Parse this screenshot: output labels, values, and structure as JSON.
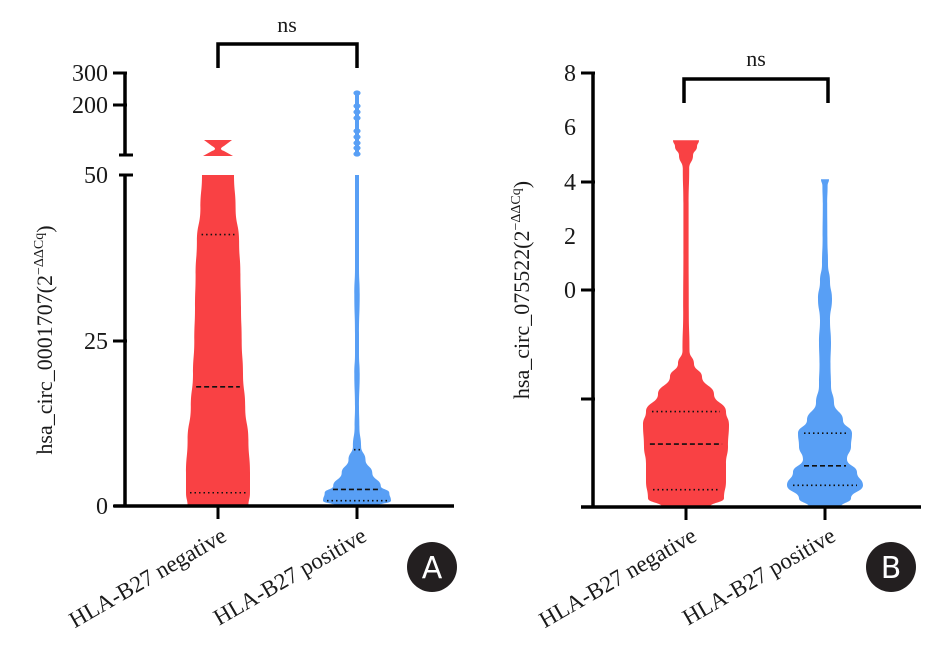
{
  "colors": {
    "negative": "#F94144",
    "positive": "#589FF5",
    "axis": "#000000",
    "badge": "#231F20"
  },
  "chart_data": [
    {
      "type": "violin",
      "panel_label": "A",
      "ylabel": "hsa_circ_0001707",
      "ylabel_unit": "(2",
      "ylabel_exponent": "−ΔΔCq",
      "ylabel_close": ")",
      "y_axis_broken": true,
      "y_segments": [
        {
          "range": [
            0,
            50
          ],
          "ticks": [
            0,
            25,
            50
          ],
          "tick_labels": [
            "0",
            "25",
            "50"
          ]
        },
        {
          "range": [
            75,
            300
          ],
          "ticks": [
            200,
            300
          ],
          "tick_labels": [
            "200",
            "300"
          ]
        }
      ],
      "categories": [
        "HLA-B27 negative",
        "HLA-B27 positive"
      ],
      "series": [
        {
          "name": "HLA-B27 negative",
          "color_key": "negative",
          "min": 0,
          "max": 100,
          "q1": 2,
          "median": 18,
          "q3": 41,
          "density_profile": [
            [
              0,
              0.95
            ],
            [
              2,
              1.0
            ],
            [
              5,
              1.0
            ],
            [
              10,
              0.95
            ],
            [
              15,
              0.85
            ],
            [
              20,
              0.78
            ],
            [
              25,
              0.74
            ],
            [
              30,
              0.72
            ],
            [
              35,
              0.7
            ],
            [
              40,
              0.66
            ],
            [
              45,
              0.55
            ],
            [
              50,
              0.5
            ]
          ],
          "outlier_segment": {
            "range": [
              75,
              100
            ]
          }
        },
        {
          "name": "HLA-B27 positive",
          "color_key": "positive",
          "min": 0,
          "max": 240,
          "q1": 0.8,
          "median": 2.5,
          "q3": 8.5,
          "density_profile": [
            [
              0,
              0.6
            ],
            [
              0.8,
              1.0
            ],
            [
              2,
              0.95
            ],
            [
              3,
              0.7
            ],
            [
              5,
              0.45
            ],
            [
              7,
              0.25
            ],
            [
              9,
              0.12
            ],
            [
              12,
              0.07
            ],
            [
              15,
              0.06
            ],
            [
              20,
              0.08
            ],
            [
              23,
              0.05
            ],
            [
              26,
              0.05
            ],
            [
              32,
              0.08
            ],
            [
              36,
              0.04
            ],
            [
              40,
              0.06
            ],
            [
              44,
              0.04
            ],
            [
              50,
              0.04
            ]
          ],
          "outlier_segment": {
            "range": [
              75,
              240
            ]
          }
        }
      ],
      "significance": {
        "label": "ns",
        "between": [
          "HLA-B27 negative",
          "HLA-B27 positive"
        ]
      }
    },
    {
      "type": "violin",
      "panel_label": "B",
      "ylabel": "hsa_circ_075522",
      "ylabel_unit": "(2",
      "ylabel_exponent": "−ΔΔCq",
      "ylabel_close": ")",
      "y_tick_labels": [
        "8",
        "6",
        "4",
        "2",
        "0"
      ],
      "y_ticks_marked": [
        "8",
        "4",
        "0"
      ],
      "y_unlabeled_tick": true,
      "categories": [
        "HLA-B27 negative",
        "HLA-B27 positive"
      ],
      "series": [
        {
          "name": "HLA-B27 negative",
          "color_key": "negative",
          "q1_rel": 0.04,
          "median_rel": 0.145,
          "q3_rel": 0.22,
          "max_rel": 0.845
        },
        {
          "name": "HLA-B27 positive",
          "color_key": "positive",
          "q1_rel": 0.05,
          "median_rel": 0.095,
          "q3_rel": 0.17,
          "max_rel": 0.755
        }
      ],
      "significance": {
        "label": "ns",
        "between": [
          "HLA-B27 negative",
          "HLA-B27 positive"
        ]
      }
    }
  ]
}
